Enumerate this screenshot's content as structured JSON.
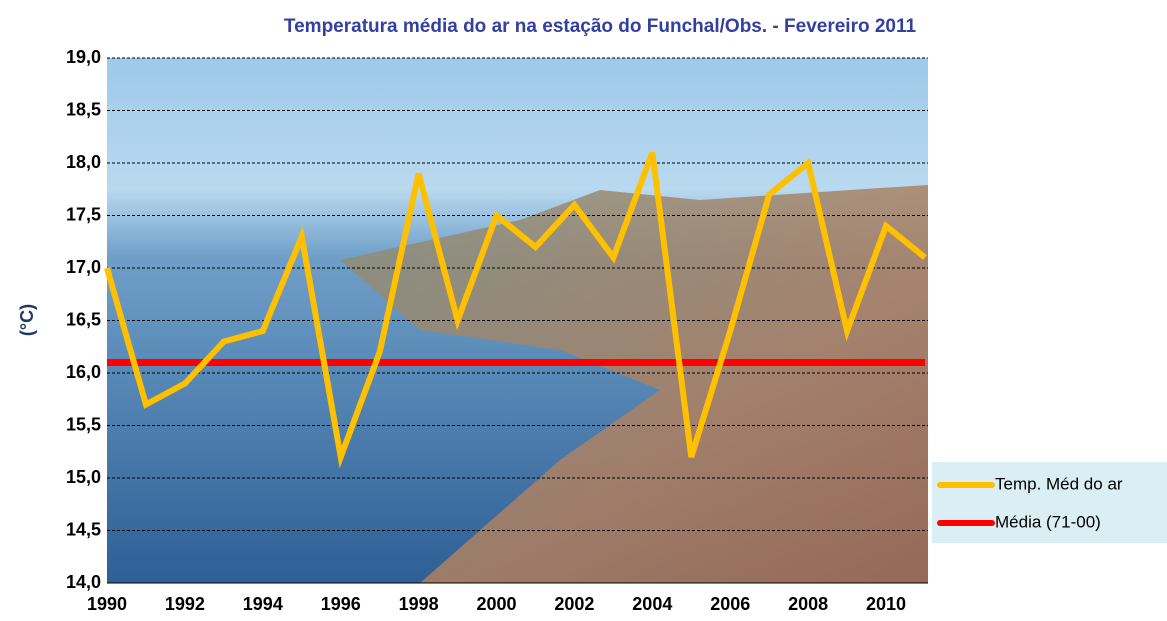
{
  "chart_data": {
    "type": "line",
    "title": "Temperatura média do ar na estação do Funchal/Obs. - Fevereiro 2011",
    "y_label": "(°C)",
    "x": [
      1990,
      1991,
      1992,
      1993,
      1994,
      1995,
      1996,
      1997,
      1998,
      1999,
      2000,
      2001,
      2002,
      2003,
      2004,
      2005,
      2006,
      2007,
      2008,
      2009,
      2010,
      2011
    ],
    "xlim": [
      1990,
      2011
    ],
    "xticks": [
      1990,
      1992,
      1994,
      1996,
      1998,
      2000,
      2002,
      2004,
      2006,
      2008,
      2010
    ],
    "ylim": [
      14,
      19
    ],
    "yticks": [
      {
        "value": 14,
        "label": "14,0"
      },
      {
        "value": 14.5,
        "label": "14,5"
      },
      {
        "value": 15,
        "label": "15,0"
      },
      {
        "value": 15.5,
        "label": "15,5"
      },
      {
        "value": 16,
        "label": "16,0"
      },
      {
        "value": 16.5,
        "label": "16,5"
      },
      {
        "value": 17,
        "label": "17,0"
      },
      {
        "value": 17.5,
        "label": "17,5"
      },
      {
        "value": 18,
        "label": "18,0"
      },
      {
        "value": 18.5,
        "label": "18,5"
      },
      {
        "value": 19,
        "label": "19,0"
      }
    ],
    "grid": true,
    "legend": "right",
    "series": [
      {
        "name": "Temp. Méd do ar",
        "color": "#ffc000",
        "values": [
          17.0,
          15.7,
          15.9,
          16.3,
          16.4,
          17.3,
          15.2,
          16.2,
          17.9,
          16.5,
          17.5,
          17.2,
          17.6,
          17.1,
          18.1,
          15.2,
          16.4,
          17.7,
          18.0,
          16.4,
          17.4,
          17.1
        ]
      },
      {
        "name": "Média (71-00)",
        "color": "#ff0000",
        "values": [
          16.1,
          16.1,
          16.1,
          16.1,
          16.1,
          16.1,
          16.1,
          16.1,
          16.1,
          16.1,
          16.1,
          16.1,
          16.1,
          16.1,
          16.1,
          16.1,
          16.1,
          16.1,
          16.1,
          16.1,
          16.1,
          16.1
        ]
      }
    ]
  }
}
